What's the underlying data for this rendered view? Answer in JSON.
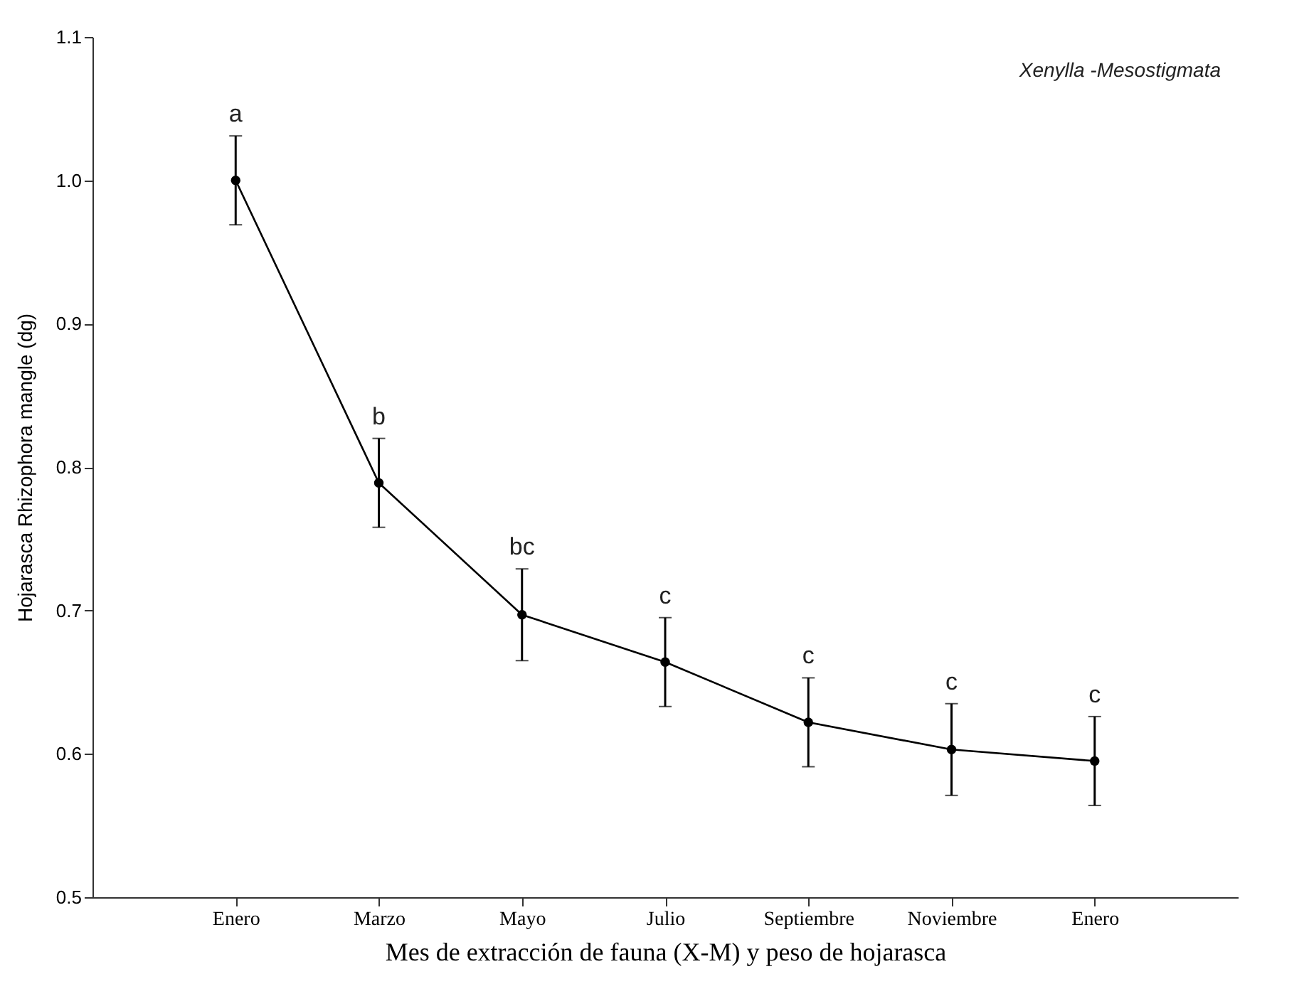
{
  "chart_data": {
    "type": "line",
    "xlabel": "Mes de extracción de fauna (X-M) y peso de hojarasca",
    "ylabel": "Hojarasca Rhizophora mangle (dg)",
    "categories": [
      "Enero",
      "Marzo",
      "Mayo",
      "Julio",
      "Septiembre",
      "Noviembre",
      "Enero"
    ],
    "series": [
      {
        "color": "#000000",
        "values": [
          1.0,
          0.789,
          0.697,
          0.664,
          0.622,
          0.603,
          0.595
        ],
        "errors": [
          0.031,
          0.031,
          0.032,
          0.031,
          0.031,
          0.032,
          0.031
        ]
      }
    ],
    "ylim": [
      0.5,
      1.1
    ],
    "yticks": [
      0.5,
      0.6,
      0.7,
      0.8,
      0.9,
      {
        "value": 1,
        "label": "1.0"
      },
      1.1
    ],
    "marker": "circle",
    "line_style": "solid",
    "grid": false,
    "annotations": [
      "Xenylla -Mesostigmata",
      "a",
      "b",
      "bc",
      "c",
      "c",
      "c",
      "c"
    ]
  }
}
